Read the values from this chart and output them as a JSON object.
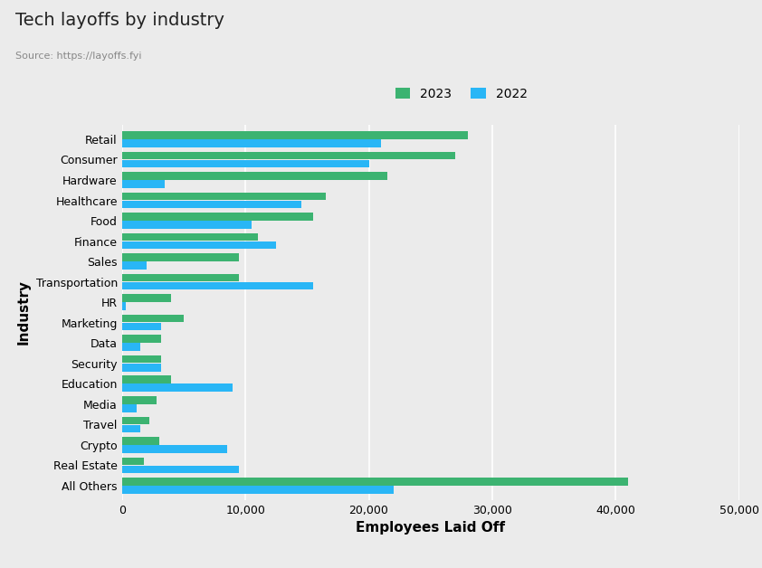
{
  "title": "Tech layoffs by industry",
  "source": "Source: https://layoffs.fyi",
  "xlabel": "Employees Laid Off",
  "ylabel": "Industry",
  "legend_labels": [
    "2023",
    "2022"
  ],
  "legend_colors": [
    "#3cb371",
    "#29b6f6"
  ],
  "background_color": "#ebebeb",
  "xlim": [
    0,
    50000
  ],
  "xticks": [
    0,
    10000,
    20000,
    30000,
    40000,
    50000
  ],
  "categories": [
    "All Others",
    "Real Estate",
    "Crypto",
    "Travel",
    "Media",
    "Education",
    "Security",
    "Data",
    "Marketing",
    "HR",
    "Transportation",
    "Sales",
    "Finance",
    "Food",
    "Healthcare",
    "Hardware",
    "Consumer",
    "Retail"
  ],
  "values_2023": [
    41000,
    1800,
    3000,
    2200,
    2800,
    4000,
    3200,
    3200,
    5000,
    4000,
    9500,
    9500,
    11000,
    15500,
    16500,
    21500,
    27000,
    28000
  ],
  "values_2022": [
    22000,
    9500,
    8500,
    1500,
    1200,
    9000,
    3200,
    1500,
    3200,
    300,
    15500,
    2000,
    12500,
    10500,
    14500,
    3500,
    20000,
    21000
  ]
}
